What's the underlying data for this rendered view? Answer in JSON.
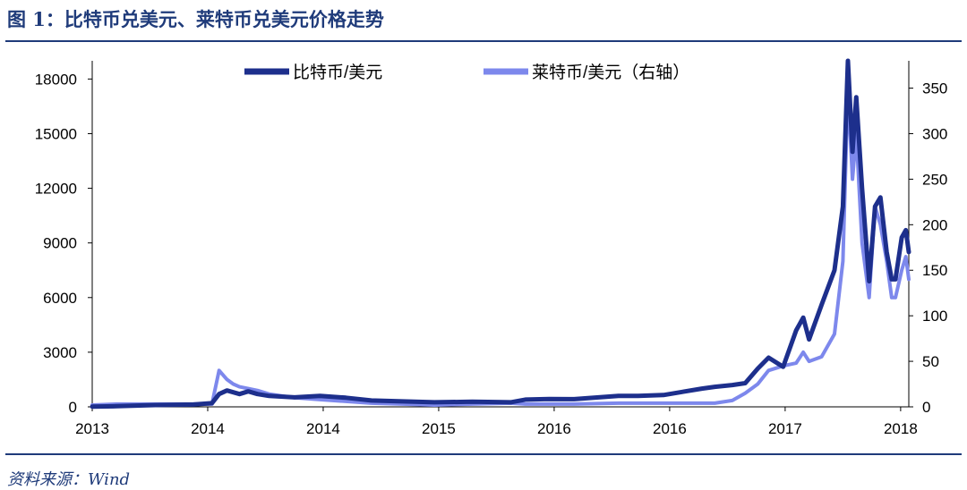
{
  "figure_title": "图 1：比特币兑美元、莱特币兑美元价格走势",
  "source_text": "资料来源：Wind",
  "colors": {
    "btc": "#1d2f8c",
    "ltc": "#7d88ec",
    "rule": "#1f3b7a"
  },
  "chart_data": {
    "type": "line",
    "title": "",
    "xlabel": "",
    "ylabel": "",
    "x_tick_labels": [
      "2013",
      "2014",
      "2014",
      "2015",
      "2016",
      "2016",
      "2017",
      "2018"
    ],
    "y_left": {
      "lim": [
        0,
        19000
      ],
      "ticks": [
        0,
        3000,
        6000,
        9000,
        12000,
        15000,
        18000
      ]
    },
    "y_right": {
      "lim": [
        0,
        380
      ],
      "ticks": [
        0,
        50,
        100,
        150,
        200,
        250,
        300,
        350
      ]
    },
    "grid": false,
    "legend_position": "top",
    "series": [
      {
        "name": "比特币/美元",
        "axis": "left",
        "color": "#1d2f8c",
        "x": [
          "2013-01-01",
          "2013-03-01",
          "2013-06-01",
          "2013-09-01",
          "2013-10-15",
          "2013-11-01",
          "2013-11-20",
          "2013-12-05",
          "2013-12-20",
          "2014-01-10",
          "2014-02-01",
          "2014-03-01",
          "2014-05-01",
          "2014-07-01",
          "2014-09-01",
          "2014-11-01",
          "2015-01-15",
          "2015-04-01",
          "2015-07-01",
          "2015-10-01",
          "2015-11-05",
          "2016-01-01",
          "2016-03-01",
          "2016-06-15",
          "2016-08-01",
          "2016-10-01",
          "2017-01-01",
          "2017-02-01",
          "2017-03-15",
          "2017-04-15",
          "2017-05-15",
          "2017-06-10",
          "2017-07-15",
          "2017-08-15",
          "2017-09-01",
          "2017-09-15",
          "2017-10-15",
          "2017-11-15",
          "2017-12-05",
          "2017-12-17",
          "2017-12-28",
          "2018-01-06",
          "2018-01-20",
          "2018-02-06",
          "2018-02-20",
          "2018-03-05",
          "2018-03-20",
          "2018-04-01",
          "2018-04-10",
          "2018-04-25",
          "2018-05-05",
          "2018-05-12"
        ],
        "values": [
          13,
          35,
          100,
          130,
          200,
          700,
          900,
          800,
          700,
          850,
          700,
          600,
          520,
          600,
          500,
          350,
          300,
          250,
          280,
          250,
          400,
          430,
          420,
          600,
          600,
          650,
          1000,
          1100,
          1200,
          1300,
          2100,
          2700,
          2200,
          4200,
          4900,
          3700,
          5600,
          7500,
          11000,
          19000,
          14000,
          17000,
          12000,
          6900,
          11000,
          11500,
          8500,
          7000,
          7000,
          9300,
          9700,
          8500
        ]
      },
      {
        "name": "莱特币/美元（右轴）",
        "axis": "right",
        "color": "#7d88ec",
        "x": [
          "2013-01-01",
          "2013-03-01",
          "2013-06-01",
          "2013-09-01",
          "2013-10-15",
          "2013-11-01",
          "2013-11-20",
          "2013-12-05",
          "2013-12-20",
          "2014-01-10",
          "2014-02-01",
          "2014-03-01",
          "2014-05-01",
          "2014-07-01",
          "2014-09-01",
          "2014-11-01",
          "2015-01-15",
          "2015-04-01",
          "2015-07-01",
          "2015-10-01",
          "2015-11-05",
          "2016-01-01",
          "2016-03-01",
          "2016-06-15",
          "2016-08-01",
          "2016-10-01",
          "2017-01-01",
          "2017-02-01",
          "2017-03-15",
          "2017-04-15",
          "2017-05-15",
          "2017-06-10",
          "2017-07-15",
          "2017-08-15",
          "2017-09-01",
          "2017-09-15",
          "2017-10-15",
          "2017-11-15",
          "2017-12-05",
          "2017-12-17",
          "2017-12-28",
          "2018-01-06",
          "2018-01-20",
          "2018-02-06",
          "2018-02-20",
          "2018-03-05",
          "2018-03-20",
          "2018-04-01",
          "2018-04-10",
          "2018-04-25",
          "2018-05-05",
          "2018-05-12"
        ],
        "values": [
          2,
          3,
          3,
          3,
          3,
          40,
          30,
          25,
          22,
          20,
          18,
          14,
          10,
          8,
          6,
          4,
          3,
          2,
          3,
          4,
          3,
          3,
          3,
          4,
          4,
          4,
          4,
          4,
          7,
          15,
          25,
          40,
          45,
          48,
          60,
          50,
          55,
          80,
          160,
          350,
          250,
          300,
          180,
          120,
          220,
          200,
          160,
          120,
          120,
          150,
          165,
          140
        ]
      }
    ]
  }
}
